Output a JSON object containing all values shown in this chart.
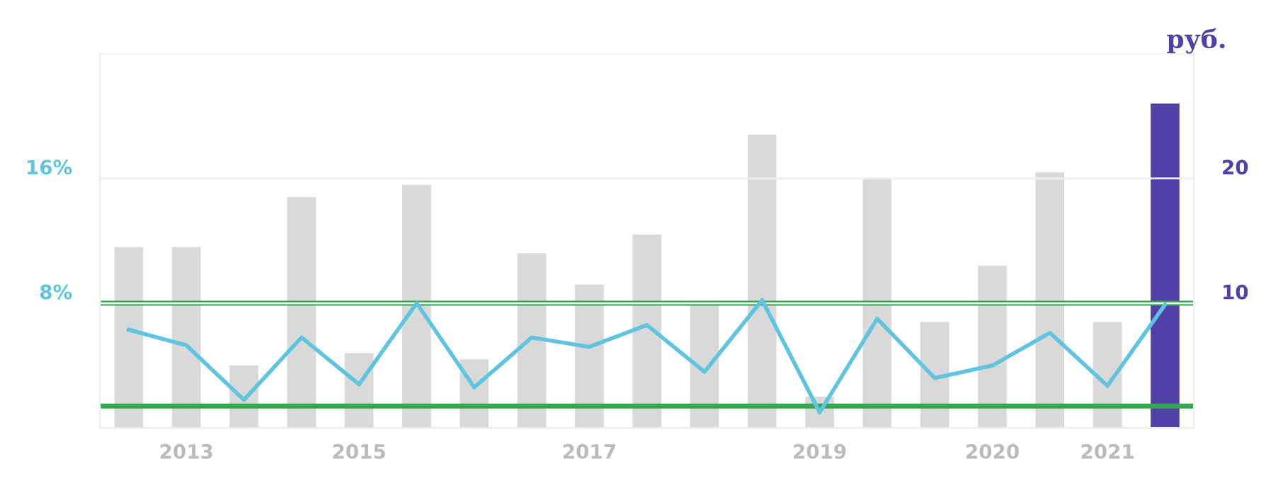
{
  "chart_data": {
    "type": "bar",
    "y2label": "руб.",
    "categories": [
      null,
      "2013",
      null,
      null,
      "2015",
      null,
      null,
      null,
      "2017",
      null,
      null,
      null,
      "2019",
      null,
      null,
      "2020",
      null,
      "2021",
      null
    ],
    "ylim": [
      0,
      24
    ],
    "yticks": [
      {
        "value": 8,
        "label": "8%"
      },
      {
        "value": 16,
        "label": "16%"
      },
      {
        "value": 24,
        "label": null
      }
    ],
    "y2lim": [
      0,
      30
    ],
    "y2ticks": [
      10,
      20
    ],
    "grid": "y",
    "series": [
      {
        "axis": "y2",
        "color": "#d9d9d9",
        "colors": [
          "#d9d9d9",
          "#d9d9d9",
          "#d9d9d9",
          "#d9d9d9",
          "#d9d9d9",
          "#d9d9d9",
          "#d9d9d9",
          "#d9d9d9",
          "#d9d9d9",
          "#d9d9d9",
          "#d9d9d9",
          "#d9d9d9",
          "#d9d9d9",
          "#d9d9d9",
          "#d9d9d9",
          "#d9d9d9",
          "#d9d9d9",
          "#d9d9d9",
          "#5040a8"
        ],
        "values": [
          14.5,
          14.5,
          5,
          18.5,
          6,
          19.5,
          5.5,
          14,
          11.5,
          15.5,
          10,
          23.5,
          2.5,
          20,
          8.5,
          13,
          20.5,
          8.5,
          26
        ]
      },
      {
        "type": "line",
        "axis": "y",
        "color": "#5ec4e0",
        "values": [
          6.3,
          5.3,
          1.8,
          5.8,
          2.8,
          8.0,
          2.6,
          5.8,
          5.2,
          6.6,
          3.6,
          8.2,
          1.0,
          7.0,
          3.2,
          4.0,
          6.1,
          2.7,
          7.9
        ]
      }
    ],
    "ref_lines": [
      {
        "axis": "y",
        "value": 8,
        "color": "#2ea84a"
      },
      {
        "axis": "y",
        "value": 1.4,
        "color": "#2ea84a"
      }
    ],
    "legend": false
  }
}
